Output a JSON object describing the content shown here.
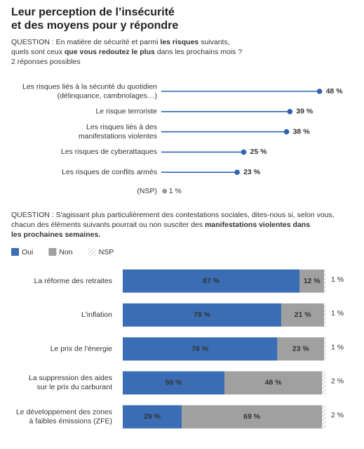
{
  "title": [
    "Leur perception de l’insécurité",
    "et des moyens pour y répondre"
  ],
  "chart_data": [
    {
      "type": "lollipop",
      "question": [
        [
          {
            "text": "QUESTION : En matière de sécurité et parmi "
          },
          {
            "text": "les risques",
            "bold": true
          },
          {
            "text": " suivants,"
          }
        ],
        [
          {
            "text": "quels sont ceux "
          },
          {
            "text": "que vous redoutez le plus",
            "bold": true
          },
          {
            "text": " dans les prochains mois ?"
          }
        ],
        [
          {
            "text": "2 réponses possibles"
          }
        ]
      ],
      "categories": [
        [
          "Les risques liés à la sécurité du quotidien",
          "(délinquance, cambriolages…)"
        ],
        [
          "Le risque terroriste"
        ],
        [
          "Les risques liés à des",
          "manifestations violentes"
        ],
        [
          "Les risques de cyberattaques"
        ],
        [
          "Les risques de conflits armés"
        ]
      ],
      "values": [
        48,
        39,
        38,
        25,
        23
      ],
      "value_labels": [
        "48 %",
        "39 %",
        "38 %",
        "25 %",
        "23 %"
      ],
      "color": "#2f64ad",
      "nsp": {
        "label": "(NSP)",
        "value": 1,
        "value_label": "1 %",
        "color": "#999999"
      },
      "xlim": [
        0,
        50
      ]
    },
    {
      "type": "stacked-bar",
      "question": [
        [
          {
            "text": "QUESTION : S'agissant plus particulièrement des contestations sociales, dites-nous si, selon vous,"
          }
        ],
        [
          {
            "text": "chacun des éléments suivants pourrait ou non susciter des "
          },
          {
            "text": "manifestations violentes dans",
            "bold": true
          }
        ],
        [
          {
            "text": "les prochaines semaines.",
            "bold": true
          }
        ]
      ],
      "categories": [
        [
          "La réforme des retraites"
        ],
        [
          "L'inflation"
        ],
        [
          "Le prix de l'énergie"
        ],
        [
          "La suppression des aides",
          "sur le prix du carburant"
        ],
        [
          "Le développement des zones",
          "à faibles émissions (ZFE)"
        ]
      ],
      "series": [
        {
          "name": "Oui",
          "color": "#3a6db3",
          "values": [
            87,
            78,
            76,
            50,
            29
          ],
          "value_labels": [
            "87 %",
            "78 %",
            "76 %",
            "50 %",
            "29 %"
          ]
        },
        {
          "name": "Non",
          "color": "#a0a0a0",
          "values": [
            12,
            21,
            23,
            48,
            69
          ],
          "value_labels": [
            "12 %",
            "21 %",
            "23 %",
            "48 %",
            "69 %"
          ]
        },
        {
          "name": "NSP",
          "color": "#bbbbbb",
          "hatch": true,
          "values": [
            1,
            1,
            1,
            2,
            2
          ],
          "value_labels": [
            "1 %",
            "1 %",
            "1 %",
            "2 %",
            "2 %"
          ]
        }
      ],
      "xlim": [
        0,
        100
      ]
    }
  ]
}
